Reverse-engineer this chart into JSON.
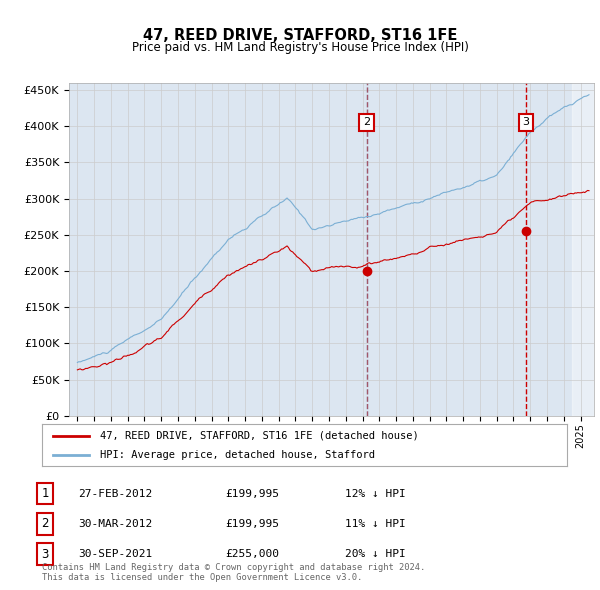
{
  "title": "47, REED DRIVE, STAFFORD, ST16 1FE",
  "subtitle": "Price paid vs. HM Land Registry's House Price Index (HPI)",
  "legend_line1": "47, REED DRIVE, STAFFORD, ST16 1FE (detached house)",
  "legend_line2": "HPI: Average price, detached house, Stafford",
  "transactions": [
    {
      "label": "1",
      "date_str": "27-FEB-2012",
      "price_str": "£199,995",
      "pct_str": "12% ↓ HPI",
      "year": 2012.13
    },
    {
      "label": "2",
      "date_str": "30-MAR-2012",
      "price_str": "£199,995",
      "pct_str": "11% ↓ HPI",
      "year": 2012.25
    },
    {
      "label": "3",
      "date_str": "30-SEP-2021",
      "price_str": "£255,000",
      "pct_str": "20% ↓ HPI",
      "year": 2021.75
    }
  ],
  "transaction_marker_values": [
    199995,
    199995,
    255000
  ],
  "footer": "Contains HM Land Registry data © Crown copyright and database right 2024.\nThis data is licensed under the Open Government Licence v3.0.",
  "hpi_color": "#7bafd4",
  "price_color": "#cc0000",
  "marker_color": "#cc0000",
  "vline_color_blue": "#7bafd4",
  "vline_color_red": "#cc0000",
  "grid_color": "#cccccc",
  "background_color": "#dce6f1",
  "ylim": [
    0,
    460000
  ],
  "yticks": [
    0,
    50000,
    100000,
    150000,
    200000,
    250000,
    300000,
    350000,
    400000,
    450000
  ],
  "xlim_start": 1994.5,
  "xlim_end": 2025.8
}
